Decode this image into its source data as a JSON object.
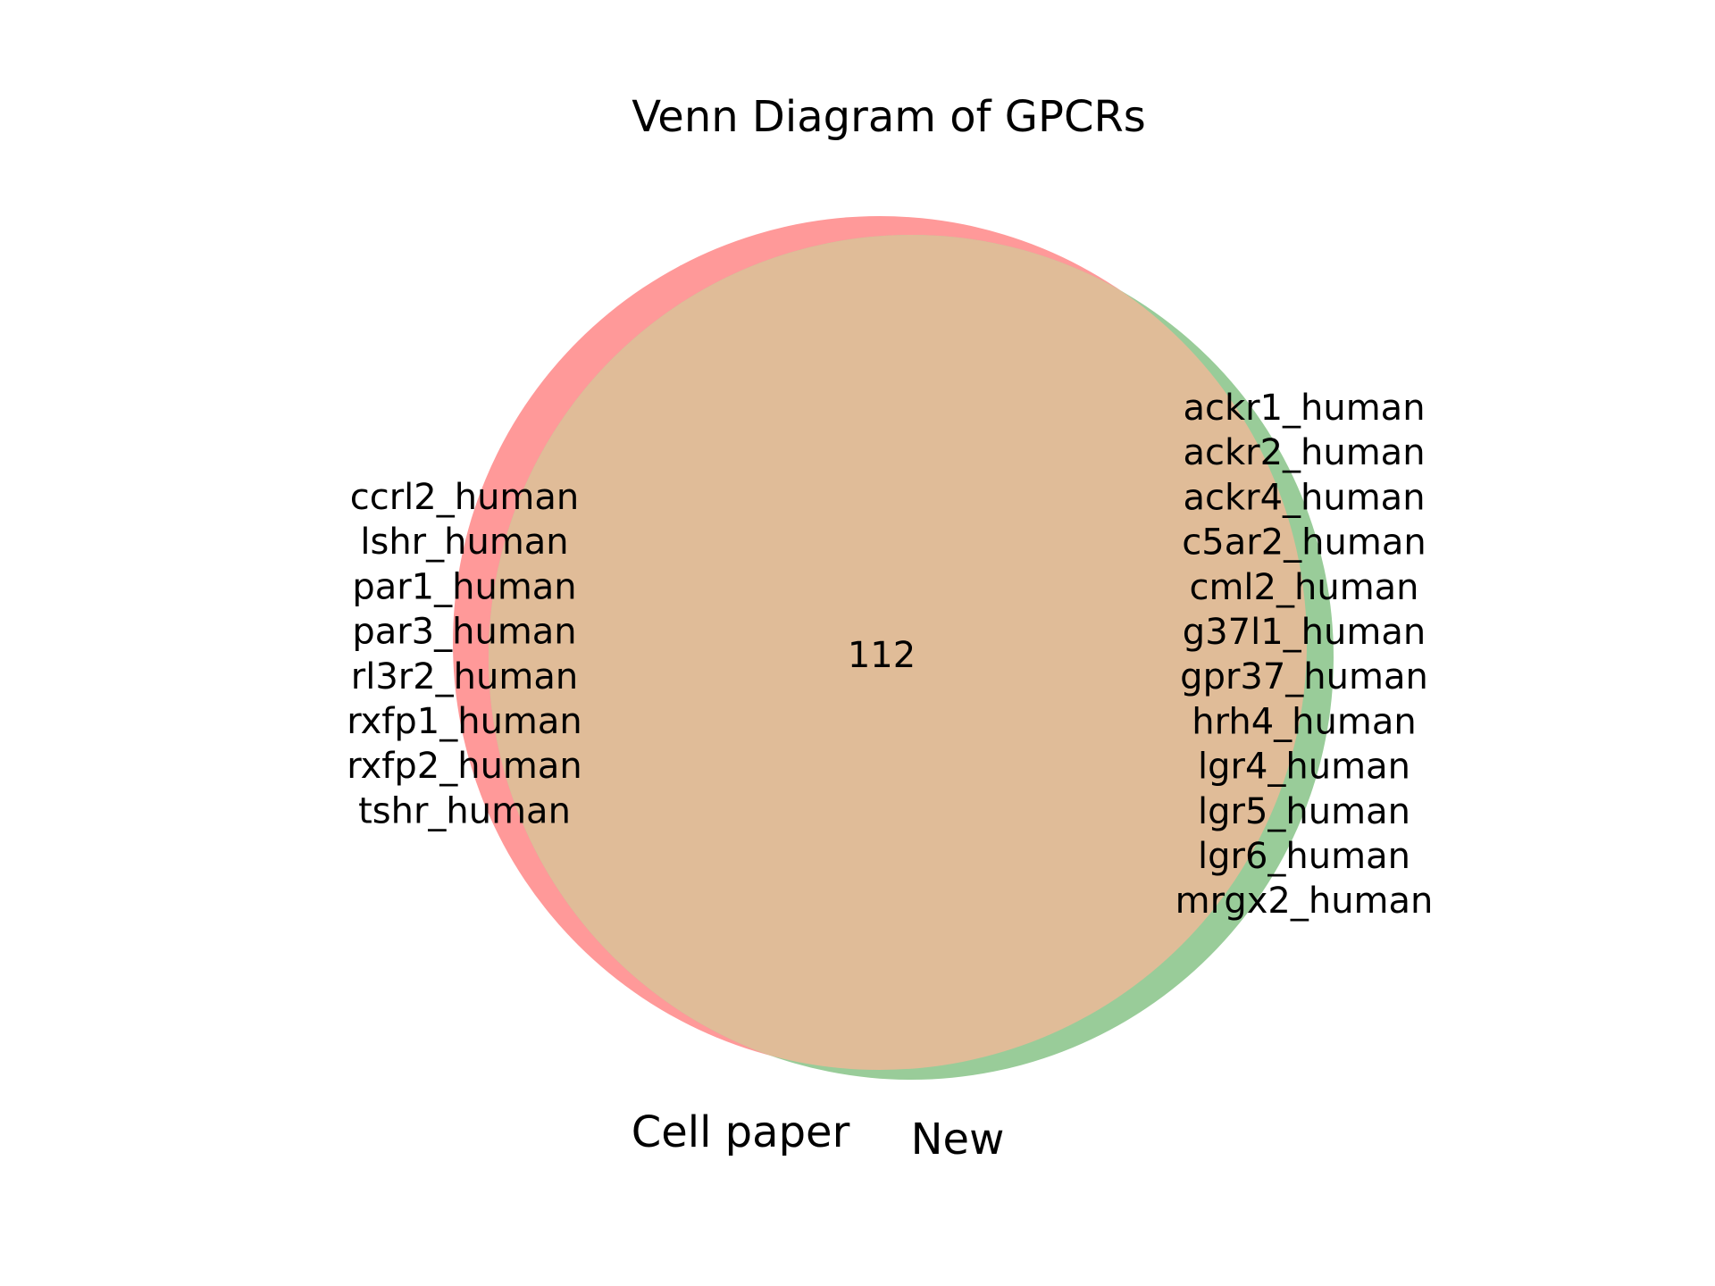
{
  "title": "Venn Diagram of GPCRs",
  "colors": {
    "left_only": "#ff9999",
    "right_only": "#99cc99",
    "overlap": "#e0bc98"
  },
  "sets": {
    "left": {
      "label": "Cell paper",
      "unique_items": [
        "ccrl2_human",
        "lshr_human",
        "par1_human",
        "par3_human",
        "rl3r2_human",
        "rxfp1_human",
        "rxfp2_human",
        "tshr_human"
      ]
    },
    "right": {
      "label": "New",
      "unique_items": [
        "ackr1_human",
        "ackr2_human",
        "ackr4_human",
        "c5ar2_human",
        "cml2_human",
        "g37l1_human",
        "gpr37_human",
        "hrh4_human",
        "lgr4_human",
        "lgr5_human",
        "lgr6_human",
        "mrgx2_human"
      ]
    },
    "intersection": {
      "count": "112"
    }
  }
}
